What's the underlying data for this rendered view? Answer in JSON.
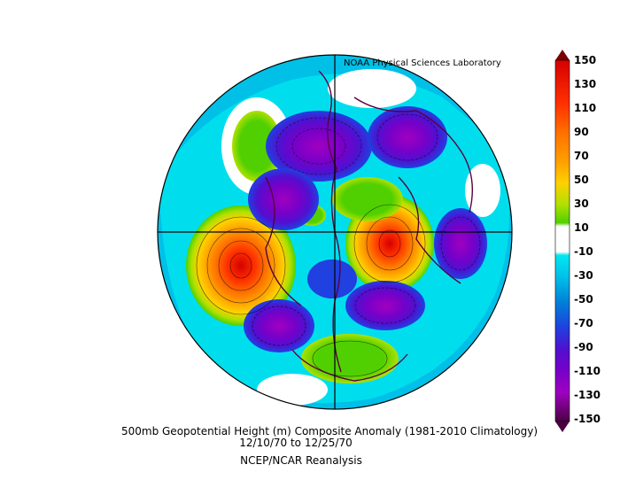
{
  "map": {
    "credit": "NOAA Physical Sciences Laboratory",
    "title": "500mb Geopotential Height (m) Composite Anomaly (1981-2010 Climatology)",
    "dates": "12/10/70   to 12/25/70",
    "source": "NCEP/NCAR Reanalysis",
    "projection": "north-polar-stereographic",
    "colorbar": {
      "labels": [
        "150",
        "130",
        "110",
        "90",
        "70",
        "50",
        "30",
        "10",
        "-10",
        "-30",
        "-50",
        "-70",
        "-90",
        "-110",
        "-130",
        "-150"
      ],
      "colors": [
        "#7a0000",
        "#d50000",
        "#ff3000",
        "#ff7000",
        "#ffa000",
        "#ffd000",
        "#f0f000",
        "#b0e000",
        "#50d000",
        "#ffffff",
        "#00e8f0",
        "#00c0e8",
        "#0080d8",
        "#2040e0",
        "#5010d0",
        "#7800c8",
        "#a000c0",
        "#7a0080",
        "#4a0040"
      ]
    }
  }
}
